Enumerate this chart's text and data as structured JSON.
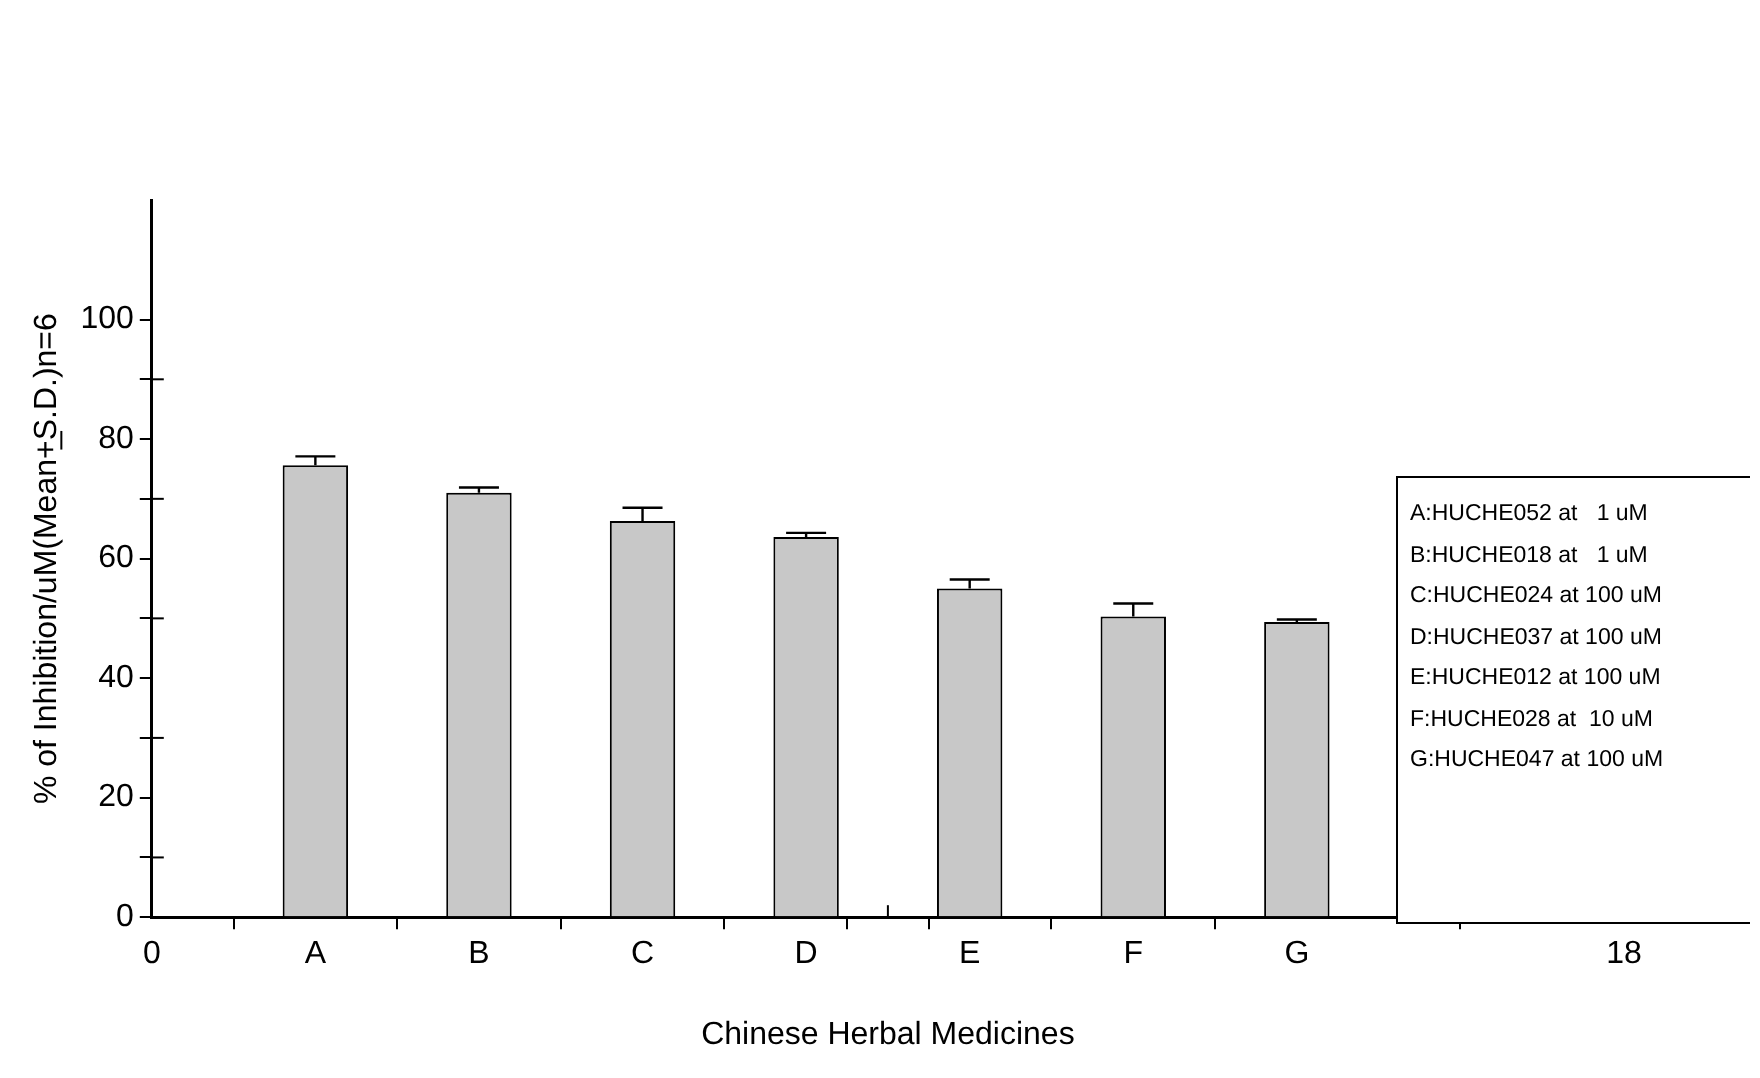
{
  "chart_data": {
    "type": "bar",
    "xlabel": "Chinese Herbal Medicines",
    "ylabel": "% of Inhibition/uM(Mean+̲S.D.)n=6",
    "x": [
      2,
      4,
      6,
      8,
      10,
      12,
      14
    ],
    "series": [
      {
        "color": "#c8c8c8",
        "values": [
          75.6,
          71.0,
          66.3,
          63.6,
          55.0,
          50.3,
          49.4
        ],
        "errors": [
          [
            75.6,
            77.1
          ],
          [
            71.0,
            71.9
          ],
          [
            66.3,
            68.5
          ],
          [
            63.6,
            64.3
          ],
          [
            55.0,
            56.5
          ],
          [
            50.3,
            52.5
          ],
          [
            49.4,
            49.8
          ]
        ]
      }
    ],
    "xlim": [
      0,
      18
    ],
    "xticks": [
      0,
      {
        "value": 2,
        "label": "A"
      },
      {
        "value": 4,
        "label": "B"
      },
      {
        "value": 6,
        "label": "C"
      },
      {
        "value": 8,
        "label": "D"
      },
      {
        "value": 9,
        "label": null
      },
      {
        "value": 10,
        "label": "E"
      },
      {
        "value": 12,
        "label": "F"
      },
      {
        "value": 14,
        "label": "G"
      },
      18
    ],
    "ylim": [
      0,
      120
    ],
    "yticks": [
      0,
      {
        "value": 10,
        "label": null
      },
      20,
      {
        "value": 30,
        "label": null
      },
      40,
      {
        "value": 50,
        "label": null
      },
      60,
      {
        "value": 70,
        "label": null
      },
      80,
      {
        "value": 90,
        "label": null
      },
      100
    ],
    "annotations": [
      "A:HUCHE052 at   1 uM",
      "B:HUCHE018 at   1 uM",
      "C:HUCHE024 at 100 uM",
      "D:HUCHE037 at 100 uM",
      "E:HUCHE012 at 100 uM",
      "F:HUCHE028 at  10 uM",
      "G:HUCHE047 at 100 uM"
    ],
    "grid": false,
    "legend": false
  }
}
